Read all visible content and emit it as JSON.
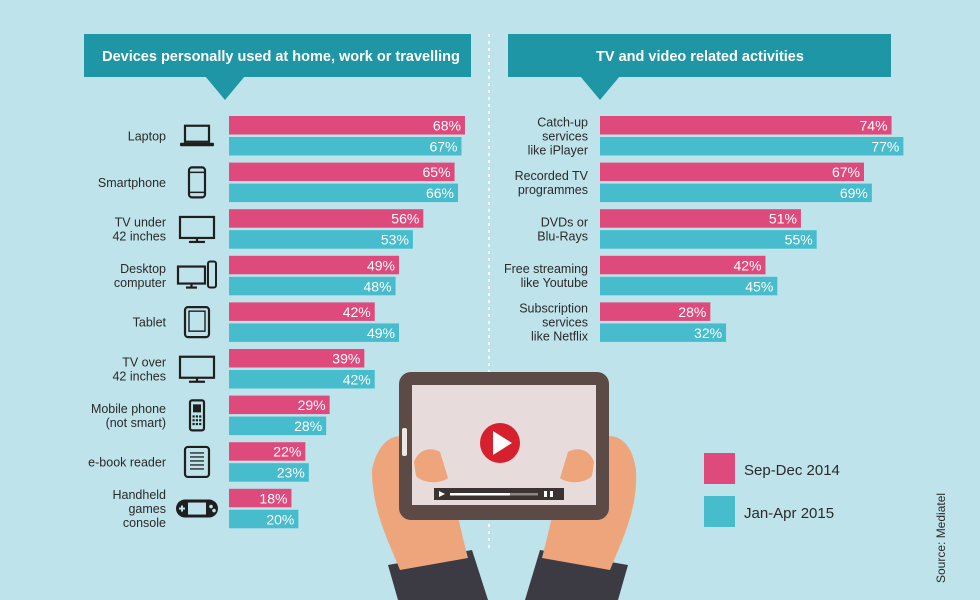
{
  "colors": {
    "background": "#bfe3ea",
    "series_a": "#df4a7c",
    "series_b": "#46bccd",
    "banner": "#1f96a5",
    "icon": "#1f1f1f"
  },
  "legend": {
    "position": "bottom-right"
  },
  "source": "Source: Mediatel",
  "chart_data": [
    {
      "type": "bar",
      "orientation": "horizontal",
      "title": "Devices personally used at home, work or travelling",
      "categories": [
        [
          "Laptop"
        ],
        [
          "Smartphone"
        ],
        [
          "TV under",
          "42 inches"
        ],
        [
          "Desktop",
          "computer"
        ],
        [
          "Tablet"
        ],
        [
          "TV over",
          "42 inches"
        ],
        [
          "Mobile phone",
          "(not smart)"
        ],
        [
          "e-book reader"
        ],
        [
          "Handheld",
          "games",
          "console"
        ]
      ],
      "icons": [
        "laptop-icon",
        "smartphone-icon",
        "tv-icon",
        "desktop-icon",
        "tablet-icon",
        "tv-icon",
        "mobile-phone-icon",
        "ebook-reader-icon",
        "handheld-console-icon"
      ],
      "series": [
        {
          "name": "Sep-Dec 2014",
          "values": [
            68,
            65,
            56,
            49,
            42,
            39,
            29,
            22,
            18
          ]
        },
        {
          "name": "Jan-Apr 2015",
          "values": [
            67,
            66,
            53,
            48,
            49,
            42,
            28,
            23,
            20
          ]
        }
      ],
      "value_suffix": "%",
      "xlim": [
        0,
        100
      ]
    },
    {
      "type": "bar",
      "orientation": "horizontal",
      "title": "TV and video related activities",
      "categories": [
        [
          "Catch-up",
          "services",
          "like iPlayer"
        ],
        [
          "Recorded TV",
          "programmes"
        ],
        [
          "DVDs or",
          "Blu-Rays"
        ],
        [
          "Free streaming",
          "like Youtube"
        ],
        [
          "Subscription",
          "services",
          "like Netflix"
        ]
      ],
      "series": [
        {
          "name": "Sep-Dec 2014",
          "values": [
            74,
            67,
            51,
            42,
            28
          ]
        },
        {
          "name": "Jan-Apr 2015",
          "values": [
            77,
            69,
            55,
            45,
            32
          ]
        }
      ],
      "value_suffix": "%",
      "xlim": [
        0,
        100
      ]
    }
  ]
}
